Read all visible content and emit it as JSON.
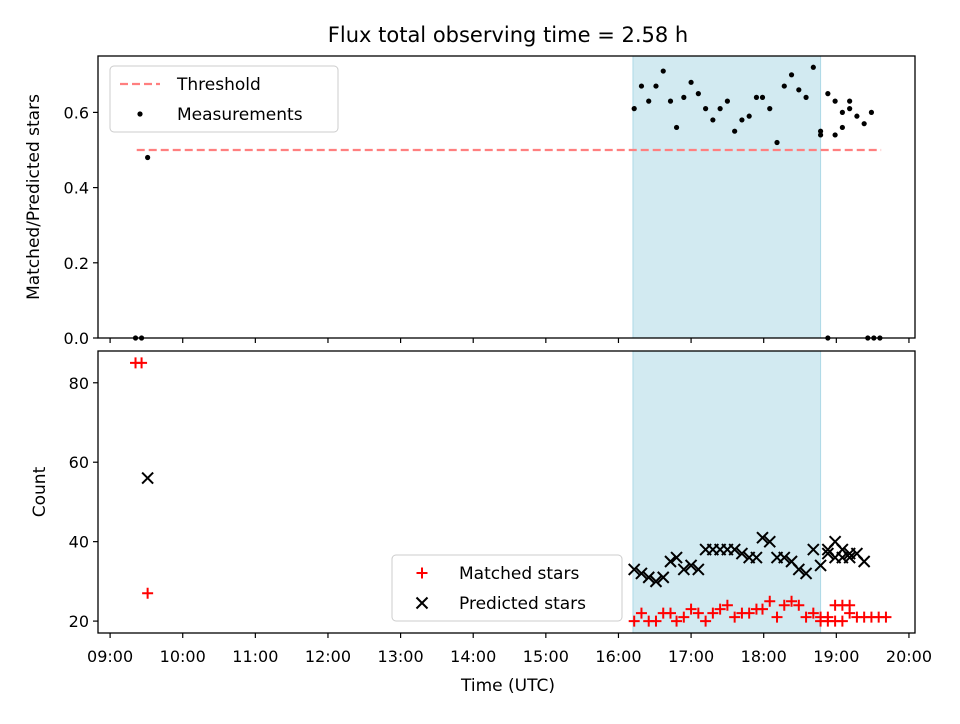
{
  "chart_data": {
    "title": "Flux total observing time = 2.58 h",
    "xlabel": "Time (UTC)",
    "x_type": "time",
    "xlim": [
      "08:50",
      "20:05"
    ],
    "xticks": [
      "09:00",
      "10:00",
      "11:00",
      "12:00",
      "13:00",
      "14:00",
      "15:00",
      "16:00",
      "17:00",
      "18:00",
      "19:00",
      "20:00"
    ],
    "highlight_span": {
      "start": "16:12",
      "end": "18:47",
      "color": "#add8e6"
    },
    "panels": [
      {
        "type": "scatter",
        "ylabel": "Matched/Predicted stars",
        "ylim": [
          0,
          0.75
        ],
        "yticks": [
          0.0,
          0.2,
          0.4,
          0.6
        ],
        "ytick_labels": [
          "0.0",
          "0.2",
          "0.4",
          "0.6"
        ],
        "legend": {
          "location": "top-left",
          "entries": [
            {
              "label": "Threshold",
              "marker": "dashed-line",
              "color": "#ff7f7f"
            },
            {
              "label": "Measurements",
              "marker": "dot",
              "color": "#000000"
            }
          ]
        },
        "threshold": {
          "value": 0.5,
          "x_start": "09:22",
          "x_end": "19:37",
          "color": "#ff7f7f"
        },
        "series": [
          {
            "name": "Measurements",
            "marker": "dot",
            "color": "#000000",
            "points": [
              [
                "09:21",
                0.0
              ],
              [
                "09:26",
                0.0
              ],
              [
                "09:31",
                0.48
              ],
              [
                "16:13",
                0.61
              ],
              [
                "16:19",
                0.67
              ],
              [
                "16:25",
                0.63
              ],
              [
                "16:31",
                0.67
              ],
              [
                "16:37",
                0.71
              ],
              [
                "16:43",
                0.63
              ],
              [
                "16:48",
                0.56
              ],
              [
                "16:54",
                0.64
              ],
              [
                "17:00",
                0.68
              ],
              [
                "17:06",
                0.65
              ],
              [
                "17:12",
                0.61
              ],
              [
                "17:18",
                0.58
              ],
              [
                "17:24",
                0.61
              ],
              [
                "17:30",
                0.63
              ],
              [
                "17:36",
                0.55
              ],
              [
                "17:42",
                0.58
              ],
              [
                "17:48",
                0.59
              ],
              [
                "17:54",
                0.64
              ],
              [
                "17:59",
                0.64
              ],
              [
                "18:05",
                0.61
              ],
              [
                "18:11",
                0.52
              ],
              [
                "18:17",
                0.67
              ],
              [
                "18:23",
                0.7
              ],
              [
                "18:29",
                0.66
              ],
              [
                "18:35",
                0.64
              ],
              [
                "18:41",
                0.72
              ],
              [
                "18:47",
                0.55
              ],
              [
                "18:53",
                0.65
              ],
              [
                "18:59",
                0.63
              ],
              [
                "19:05",
                0.6
              ],
              [
                "19:11",
                0.63
              ],
              [
                "18:47",
                0.54
              ],
              [
                "18:53",
                0.0
              ],
              [
                "18:59",
                0.54
              ],
              [
                "19:05",
                0.56
              ],
              [
                "19:11",
                0.61
              ],
              [
                "19:17",
                0.59
              ],
              [
                "19:23",
                0.57
              ],
              [
                "19:29",
                0.6
              ],
              [
                "19:26",
                0.0
              ],
              [
                "19:31",
                0.0
              ],
              [
                "19:36",
                0.0
              ]
            ]
          }
        ]
      },
      {
        "type": "scatter",
        "ylabel": "Count",
        "ylim": [
          17,
          88
        ],
        "yticks": [
          20,
          40,
          60,
          80
        ],
        "ytick_labels": [
          "20",
          "40",
          "60",
          "80"
        ],
        "legend": {
          "location": "bottom-center",
          "entries": [
            {
              "label": "Matched stars",
              "marker": "plus",
              "color": "#ff0000"
            },
            {
              "label": "Predicted stars",
              "marker": "x",
              "color": "#000000"
            }
          ]
        },
        "series": [
          {
            "name": "Matched stars",
            "marker": "plus",
            "color": "#ff0000",
            "points": [
              [
                "09:21",
                85
              ],
              [
                "09:26",
                85
              ],
              [
                "09:31",
                27
              ],
              [
                "16:13",
                20
              ],
              [
                "16:19",
                22
              ],
              [
                "16:25",
                20
              ],
              [
                "16:31",
                20
              ],
              [
                "16:37",
                22
              ],
              [
                "16:43",
                22
              ],
              [
                "16:48",
                20
              ],
              [
                "16:54",
                21
              ],
              [
                "17:00",
                23
              ],
              [
                "17:06",
                22
              ],
              [
                "17:12",
                20
              ],
              [
                "17:18",
                22
              ],
              [
                "17:24",
                23
              ],
              [
                "17:30",
                24
              ],
              [
                "17:36",
                21
              ],
              [
                "17:42",
                22
              ],
              [
                "17:48",
                22
              ],
              [
                "17:54",
                23
              ],
              [
                "17:59",
                23
              ],
              [
                "18:05",
                25
              ],
              [
                "18:11",
                21
              ],
              [
                "18:17",
                24
              ],
              [
                "18:23",
                25
              ],
              [
                "18:29",
                24
              ],
              [
                "18:35",
                21
              ],
              [
                "18:41",
                22
              ],
              [
                "18:47",
                21
              ],
              [
                "18:53",
                21
              ],
              [
                "18:59",
                24
              ],
              [
                "19:05",
                24
              ],
              [
                "19:11",
                24
              ],
              [
                "18:47",
                20
              ],
              [
                "18:53",
                20
              ],
              [
                "18:59",
                20
              ],
              [
                "19:05",
                20
              ],
              [
                "19:11",
                22
              ],
              [
                "19:17",
                21
              ],
              [
                "19:23",
                21
              ],
              [
                "19:29",
                21
              ],
              [
                "19:35",
                21
              ],
              [
                "19:41",
                21
              ]
            ]
          },
          {
            "name": "Predicted stars",
            "marker": "x",
            "color": "#000000",
            "points": [
              [
                "09:31",
                56
              ],
              [
                "16:13",
                33
              ],
              [
                "16:19",
                32
              ],
              [
                "16:25",
                31
              ],
              [
                "16:31",
                30
              ],
              [
                "16:37",
                31
              ],
              [
                "16:43",
                35
              ],
              [
                "16:48",
                36
              ],
              [
                "16:54",
                33
              ],
              [
                "17:00",
                34
              ],
              [
                "17:06",
                33
              ],
              [
                "17:12",
                38
              ],
              [
                "17:18",
                38
              ],
              [
                "17:24",
                38
              ],
              [
                "17:30",
                38
              ],
              [
                "17:36",
                38
              ],
              [
                "17:42",
                37
              ],
              [
                "17:48",
                36
              ],
              [
                "17:54",
                36
              ],
              [
                "17:59",
                41
              ],
              [
                "18:05",
                40
              ],
              [
                "18:11",
                36
              ],
              [
                "18:17",
                36
              ],
              [
                "18:23",
                35
              ],
              [
                "18:29",
                33
              ],
              [
                "18:35",
                32
              ],
              [
                "18:41",
                38
              ],
              [
                "18:47",
                34
              ],
              [
                "18:53",
                38
              ],
              [
                "18:59",
                40
              ],
              [
                "19:05",
                38
              ],
              [
                "19:11",
                37
              ],
              [
                "18:53",
                37
              ],
              [
                "18:59",
                36
              ],
              [
                "19:05",
                36
              ],
              [
                "19:11",
                36
              ],
              [
                "19:17",
                37
              ],
              [
                "19:23",
                35
              ]
            ]
          }
        ]
      }
    ]
  }
}
